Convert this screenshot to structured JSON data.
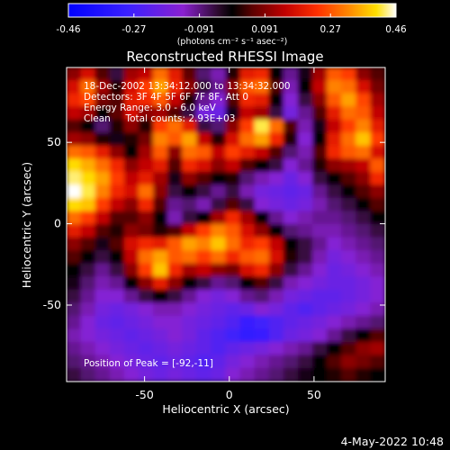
{
  "colorbar": {
    "ticks": [
      "-0.46",
      "-0.27",
      "-0.091",
      "0.091",
      "0.27",
      "0.46"
    ],
    "range": [
      -0.46,
      0.46
    ],
    "unit": "(photons cm⁻² s⁻¹ asec⁻²)"
  },
  "footer_timestamp": "4-May-2022 10:48",
  "chart_data": {
    "type": "heatmap",
    "title": "Reconstructed RHESSI Image",
    "xlabel": "Heliocentric X (arcsec)",
    "ylabel": "Heliocentric Y (arcsec)",
    "xlim": [
      -96,
      92
    ],
    "ylim": [
      -97,
      96
    ],
    "xticks": [
      -50,
      0,
      50
    ],
    "yticks": [
      -50,
      0,
      50
    ],
    "annotations": [
      "18-Dec-2002 13:34:12.000 to 13:34:32.000",
      "Detectors: 3F 4F 5F 6F 7F 8F, Att 0",
      "Energy Range: 3.0 - 6.0 keV",
      "Clean     Total counts: 2.93E+03"
    ],
    "peak_text": "Position of Peak = [-92,-11]",
    "peak_position": [
      -92,
      -11
    ],
    "grid_size": [
      22,
      24
    ],
    "values_row_major_top_to_bottom": [
      [
        0.1,
        0.18,
        0.05,
        -0.05,
        0.12,
        0.15,
        0.3,
        0.2,
        0.06,
        -0.08,
        -0.12,
        0.02,
        0.2,
        0.22,
        0.0,
        -0.1,
        -0.02,
        0.12,
        0.28,
        0.25,
        0.1,
        0.05
      ],
      [
        0.18,
        0.3,
        0.12,
        0.02,
        0.18,
        0.25,
        0.35,
        0.22,
        0.1,
        -0.04,
        -0.1,
        0.1,
        0.28,
        0.3,
        0.05,
        -0.12,
        0.0,
        0.15,
        0.32,
        0.3,
        0.18,
        0.08
      ],
      [
        0.22,
        0.26,
        0.08,
        0.05,
        0.2,
        0.22,
        0.28,
        0.15,
        0.02,
        -0.1,
        -0.15,
        0.05,
        0.22,
        0.2,
        0.0,
        -0.15,
        -0.05,
        0.1,
        0.28,
        0.35,
        0.26,
        0.12
      ],
      [
        0.15,
        0.12,
        0.0,
        0.06,
        0.18,
        0.1,
        0.12,
        0.05,
        -0.05,
        -0.18,
        -0.2,
        -0.02,
        0.15,
        0.12,
        -0.05,
        -0.18,
        -0.1,
        0.05,
        0.2,
        0.3,
        0.28,
        0.15
      ],
      [
        0.05,
        0.0,
        -0.08,
        0.02,
        0.1,
        0.02,
        0.25,
        0.3,
        0.2,
        -0.05,
        -0.08,
        0.1,
        0.25,
        0.42,
        0.3,
        0.05,
        -0.12,
        -0.02,
        0.15,
        0.25,
        0.32,
        0.2
      ],
      [
        0.12,
        0.1,
        0.02,
        -0.02,
        0.02,
        0.08,
        0.32,
        0.28,
        0.35,
        0.15,
        0.02,
        0.18,
        0.3,
        0.35,
        0.22,
        0.02,
        -0.15,
        0.0,
        0.2,
        0.3,
        0.38,
        0.25
      ],
      [
        0.3,
        0.28,
        0.2,
        0.1,
        0.0,
        0.12,
        0.28,
        0.1,
        0.3,
        0.28,
        0.15,
        0.25,
        0.2,
        0.15,
        0.05,
        -0.08,
        -0.12,
        0.05,
        0.22,
        0.28,
        0.3,
        0.18
      ],
      [
        0.4,
        0.36,
        0.3,
        0.22,
        0.1,
        0.15,
        0.2,
        0.05,
        0.22,
        0.18,
        0.1,
        0.15,
        0.05,
        0.0,
        -0.05,
        -0.15,
        -0.1,
        0.02,
        0.1,
        0.12,
        0.15,
        0.28
      ],
      [
        0.43,
        0.4,
        0.35,
        0.25,
        0.15,
        0.2,
        0.12,
        -0.02,
        0.1,
        0.05,
        0.0,
        0.02,
        -0.08,
        -0.12,
        -0.15,
        -0.2,
        -0.15,
        -0.05,
        0.0,
        0.05,
        0.1,
        0.22
      ],
      [
        0.46,
        0.42,
        0.32,
        0.22,
        0.18,
        0.3,
        0.1,
        -0.05,
        0.0,
        -0.05,
        -0.1,
        -0.05,
        -0.12,
        -0.18,
        -0.2,
        -0.22,
        -0.2,
        -0.1,
        -0.05,
        0.0,
        0.05,
        0.1
      ],
      [
        0.4,
        0.38,
        0.25,
        0.15,
        0.1,
        0.22,
        0.05,
        -0.1,
        -0.08,
        -0.12,
        -0.05,
        0.05,
        -0.05,
        -0.15,
        -0.18,
        -0.2,
        -0.18,
        -0.12,
        -0.08,
        -0.05,
        0.0,
        0.05
      ],
      [
        0.3,
        0.25,
        0.15,
        0.05,
        0.05,
        0.1,
        0.0,
        -0.12,
        -0.05,
        0.0,
        0.12,
        0.22,
        0.12,
        0.0,
        -0.1,
        -0.15,
        -0.12,
        -0.1,
        -0.1,
        -0.08,
        -0.05,
        0.0
      ],
      [
        0.2,
        0.15,
        0.05,
        0.02,
        0.1,
        0.08,
        0.02,
        0.05,
        0.15,
        0.25,
        0.32,
        0.28,
        0.18,
        0.1,
        0.0,
        -0.08,
        -0.1,
        -0.12,
        -0.12,
        -0.1,
        -0.08,
        -0.05
      ],
      [
        0.1,
        0.05,
        -0.02,
        0.05,
        0.18,
        0.22,
        0.2,
        0.28,
        0.35,
        0.32,
        0.38,
        0.3,
        0.22,
        0.25,
        0.15,
        0.0,
        -0.05,
        -0.1,
        -0.15,
        -0.12,
        -0.1,
        -0.08
      ],
      [
        0.05,
        0.0,
        -0.05,
        0.0,
        0.15,
        0.3,
        0.35,
        0.28,
        0.3,
        0.25,
        0.3,
        0.22,
        0.28,
        0.3,
        0.18,
        0.02,
        -0.05,
        -0.12,
        -0.18,
        -0.15,
        -0.12,
        -0.1
      ],
      [
        0.0,
        -0.05,
        -0.1,
        -0.05,
        0.1,
        0.25,
        0.38,
        0.22,
        0.12,
        0.15,
        0.1,
        0.08,
        0.18,
        0.22,
        0.1,
        -0.05,
        -0.1,
        -0.15,
        -0.2,
        -0.18,
        -0.15,
        -0.12
      ],
      [
        -0.02,
        -0.08,
        -0.12,
        -0.1,
        0.0,
        0.1,
        0.2,
        0.1,
        0.0,
        -0.05,
        -0.1,
        -0.08,
        0.0,
        0.05,
        -0.05,
        -0.12,
        -0.15,
        -0.18,
        -0.2,
        -0.2,
        -0.18,
        -0.15
      ],
      [
        -0.05,
        -0.1,
        -0.15,
        -0.15,
        -0.1,
        -0.05,
        0.0,
        -0.05,
        -0.1,
        -0.15,
        -0.18,
        -0.15,
        -0.1,
        -0.08,
        -0.12,
        -0.18,
        -0.2,
        -0.22,
        -0.22,
        -0.2,
        -0.18,
        -0.15
      ],
      [
        -0.08,
        -0.12,
        -0.18,
        -0.2,
        -0.18,
        -0.15,
        -0.12,
        -0.12,
        -0.15,
        -0.18,
        -0.2,
        -0.22,
        -0.2,
        -0.15,
        -0.18,
        -0.22,
        -0.25,
        -0.22,
        -0.2,
        -0.18,
        -0.15,
        -0.12
      ],
      [
        -0.1,
        -0.15,
        -0.2,
        -0.22,
        -0.2,
        -0.18,
        -0.15,
        -0.15,
        -0.18,
        -0.2,
        -0.22,
        -0.25,
        -0.3,
        -0.28,
        -0.25,
        -0.22,
        -0.2,
        -0.18,
        -0.15,
        -0.12,
        -0.1,
        -0.08
      ],
      [
        -0.12,
        -0.15,
        -0.18,
        -0.2,
        -0.22,
        -0.2,
        -0.18,
        -0.15,
        -0.18,
        -0.22,
        -0.25,
        -0.28,
        -0.32,
        -0.3,
        -0.25,
        -0.2,
        -0.18,
        -0.15,
        -0.1,
        -0.05,
        0.0,
        0.05
      ],
      [
        -0.1,
        -0.12,
        -0.15,
        -0.18,
        -0.2,
        -0.22,
        -0.2,
        -0.18,
        -0.2,
        -0.22,
        -0.25,
        -0.22,
        -0.2,
        -0.18,
        -0.15,
        -0.12,
        -0.1,
        -0.05,
        0.0,
        0.05,
        0.1,
        0.12
      ],
      [
        -0.08,
        -0.1,
        -0.12,
        -0.15,
        -0.18,
        -0.2,
        -0.22,
        -0.2,
        -0.22,
        -0.25,
        -0.22,
        -0.18,
        -0.15,
        -0.12,
        -0.1,
        -0.08,
        -0.05,
        0.0,
        0.05,
        0.1,
        0.08,
        0.05
      ],
      [
        -0.05,
        -0.08,
        -0.1,
        -0.12,
        -0.15,
        -0.18,
        -0.2,
        -0.18,
        -0.2,
        -0.22,
        -0.2,
        -0.15,
        -0.12,
        -0.1,
        -0.08,
        -0.05,
        -0.02,
        0.0,
        0.02,
        0.05,
        0.02,
        0.0
      ]
    ]
  }
}
